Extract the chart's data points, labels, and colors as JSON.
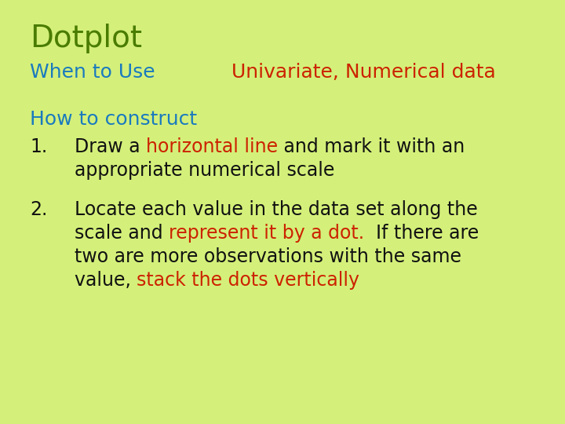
{
  "background_color": "#d4f07a",
  "title": "Dotplot",
  "title_color": "#4a7c00",
  "title_fontsize": 28,
  "when_to_use_label": "When to Use",
  "when_to_use_color": "#1a7abf",
  "when_to_use_fontsize": 18,
  "univariate_label": "Univariate, Numerical data",
  "univariate_color": "#cc2200",
  "univariate_fontsize": 18,
  "how_to_construct_label": "How to construct",
  "how_to_construct_color": "#1a7abf",
  "how_to_construct_fontsize": 18,
  "body_fontsize": 17,
  "dark_color": "#111111",
  "red_color": "#cc2200",
  "font_family": "Comic Sans MS",
  "item1_parts_line1": [
    {
      "text": "Draw a ",
      "color": "#111111"
    },
    {
      "text": "horizontal line",
      "color": "#cc2200"
    },
    {
      "text": " and mark it with an",
      "color": "#111111"
    }
  ],
  "item1_line2": "appropriate numerical scale",
  "item2_parts_line1": [
    {
      "text": "Locate each value in the data set along the",
      "color": "#111111"
    }
  ],
  "item2_parts_line2": [
    {
      "text": "scale and ",
      "color": "#111111"
    },
    {
      "text": "represent it by a dot.",
      "color": "#cc2200"
    },
    {
      "text": "  If there are",
      "color": "#111111"
    }
  ],
  "item2_parts_line3": [
    {
      "text": "two are more observations with the same",
      "color": "#111111"
    }
  ],
  "item2_parts_line4": [
    {
      "text": "value, ",
      "color": "#111111"
    },
    {
      "text": "stack the dots vertically",
      "color": "#cc2200"
    }
  ]
}
